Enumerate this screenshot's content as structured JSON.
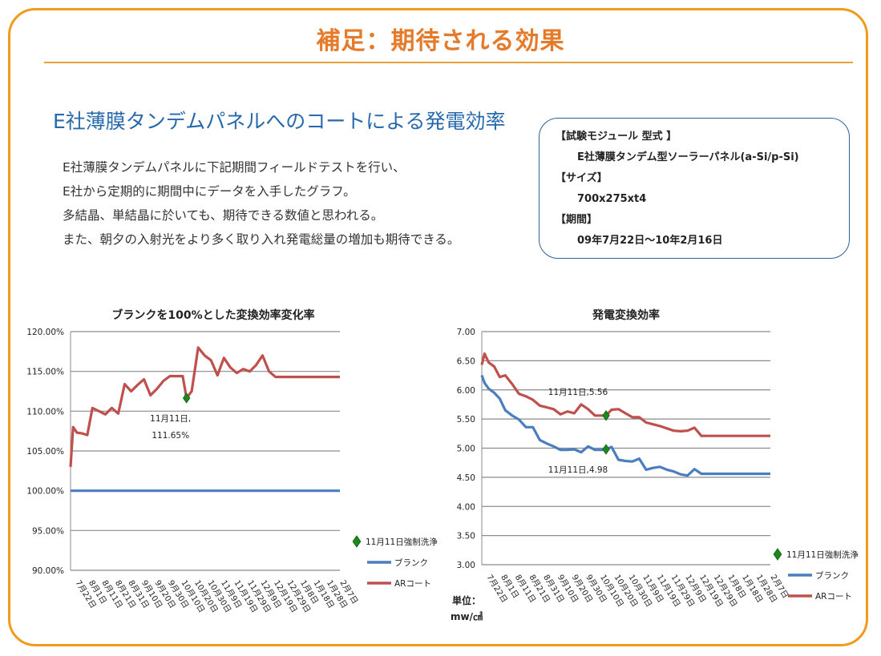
{
  "header": {
    "title": "補足：期待される効果",
    "subtitle": "E社薄膜タンデムパネルへのコートによる発電効率"
  },
  "description": [
    "E社薄膜タンデムパネルに下記期間フィールドテストを行い、",
    "E社から定期的に期間中にデータを入手したグラフ。",
    "多結晶、単結晶に於いても、期待できる数値と思われる。",
    "また、朝夕の入射光をより多く取り入れ発電総量の増加も期待できる。"
  ],
  "info_box": {
    "module_label": "【試験モジュール 型式 】",
    "module_value": "E社薄膜タンデム型ソーラーパネル(a-Si/p-Si)",
    "size_label": "【サイズ】",
    "size_value": "700x275xt4",
    "period_label": "【期間】",
    "period_value": "09年7月22日～10年2月16日"
  },
  "colors": {
    "blank": "#4a7ebf",
    "ar": "#c0504d",
    "marker": "#1a8a1a",
    "grid": "#8c8c8c"
  },
  "chart_data": [
    {
      "type": "line",
      "title": "ブランクを100%とした変換効率変化率",
      "ylim": [
        90,
        120
      ],
      "y_ticks": [
        "90.00%",
        "95.00%",
        "100.00%",
        "105.00%",
        "110.00%",
        "115.00%",
        "120.00%"
      ],
      "x_labels": [
        "7月22日",
        "8月1日",
        "8月11日",
        "8月21日",
        "8月31日",
        "9月10日",
        "9月20日",
        "9月30日",
        "10月10日",
        "10月20日",
        "10月30日",
        "11月9日",
        "11月19日",
        "11月29日",
        "12月9日",
        "12月19日",
        "12月29日",
        "1月8日",
        "1月18日",
        "1月28日",
        "2月7日"
      ],
      "x_range": [
        0,
        209
      ],
      "series": [
        {
          "name": "ブランク",
          "x": [
            0,
            209
          ],
          "values": [
            100,
            100
          ]
        },
        {
          "name": "ARコート",
          "x": [
            0,
            2,
            5,
            9,
            13,
            17,
            22,
            27,
            32,
            37,
            42,
            47,
            52,
            57,
            62,
            67,
            72,
            77,
            82,
            87,
            90,
            94,
            99,
            104,
            109,
            114,
            119,
            124,
            129,
            134,
            139,
            144,
            149,
            154,
            159,
            164,
            169,
            174,
            179,
            184,
            189,
            194,
            199,
            204,
            209
          ],
          "values": [
            103.0,
            108.0,
            107.3,
            107.2,
            107.0,
            110.4,
            110.0,
            109.6,
            110.4,
            109.7,
            113.4,
            112.5,
            113.3,
            114.0,
            112.0,
            112.8,
            113.8,
            114.4,
            114.4,
            114.4,
            111.65,
            112.5,
            118.0,
            117.0,
            116.4,
            114.5,
            116.7,
            115.5,
            114.8,
            115.3,
            115.0,
            115.8,
            117.0,
            115.0,
            114.3,
            114.3,
            114.3,
            114.3,
            114.3,
            114.3,
            114.3,
            114.3,
            114.3,
            114.3,
            114.3
          ]
        }
      ],
      "annotation": {
        "x": 90,
        "y": 111.65,
        "lines": [
          "11月11日,",
          "111.65%"
        ]
      },
      "legend": [
        {
          "type": "marker",
          "label": "11月11日強制洗浄"
        },
        {
          "type": "line",
          "series": "ブランク",
          "label": "ブランク"
        },
        {
          "type": "line",
          "series": "ARコート",
          "label": "ARコート"
        }
      ]
    },
    {
      "type": "line",
      "title": "発電変換効率",
      "ylim": [
        3,
        7
      ],
      "y_ticks": [
        "3.00",
        "3.50",
        "4.00",
        "4.50",
        "5.00",
        "5.50",
        "6.00",
        "6.50",
        "7.00"
      ],
      "x_labels": [
        "7月22日",
        "8月1日",
        "8月11日",
        "8月21日",
        "8月31日",
        "9月10日",
        "9月20日",
        "9月30日",
        "10月10日",
        "10月20日",
        "10月30日",
        "11月9日",
        "11月19日",
        "11月29日",
        "12月9日",
        "12月19日",
        "12月29日",
        "1月8日",
        "1月18日",
        "1月28日",
        "2月7日"
      ],
      "x_range": [
        0,
        209
      ],
      "series": [
        {
          "name": "ブランク",
          "x": [
            0,
            2,
            5,
            9,
            13,
            17,
            22,
            27,
            32,
            37,
            42,
            47,
            52,
            57,
            62,
            67,
            72,
            77,
            82,
            87,
            90,
            94,
            99,
            104,
            109,
            114,
            119,
            124,
            129,
            134,
            139,
            144,
            149,
            154,
            159,
            164,
            169,
            174,
            179,
            184,
            189,
            194,
            199,
            204,
            209
          ],
          "values": [
            6.25,
            6.12,
            6.02,
            5.95,
            5.85,
            5.65,
            5.56,
            5.49,
            5.36,
            5.36,
            5.14,
            5.08,
            5.03,
            4.97,
            4.97,
            4.98,
            4.93,
            5.03,
            4.97,
            4.97,
            4.98,
            5.02,
            4.8,
            4.78,
            4.77,
            4.82,
            4.63,
            4.66,
            4.68,
            4.63,
            4.6,
            4.55,
            4.53,
            4.64,
            4.56,
            4.56,
            4.56,
            4.56,
            4.56,
            4.56,
            4.56,
            4.56,
            4.56,
            4.56,
            4.56
          ]
        },
        {
          "name": "ARコート",
          "x": [
            0,
            2,
            5,
            9,
            13,
            17,
            22,
            27,
            32,
            37,
            42,
            47,
            52,
            57,
            62,
            67,
            72,
            77,
            82,
            87,
            90,
            94,
            99,
            104,
            109,
            114,
            119,
            124,
            129,
            134,
            139,
            144,
            149,
            154,
            159,
            164,
            169,
            174,
            179,
            184,
            189,
            194,
            199,
            204,
            209
          ],
          "values": [
            6.43,
            6.62,
            6.47,
            6.4,
            6.22,
            6.25,
            6.1,
            5.93,
            5.89,
            5.83,
            5.73,
            5.7,
            5.67,
            5.58,
            5.63,
            5.6,
            5.75,
            5.67,
            5.56,
            5.56,
            5.56,
            5.66,
            5.67,
            5.6,
            5.53,
            5.53,
            5.44,
            5.41,
            5.38,
            5.34,
            5.3,
            5.29,
            5.3,
            5.35,
            5.21,
            5.21,
            5.21,
            5.21,
            5.21,
            5.21,
            5.21,
            5.21,
            5.21,
            5.21,
            5.21
          ]
        }
      ],
      "annotations": [
        {
          "x": 90,
          "y": 5.56,
          "label": "11月11日,5.56",
          "pos": "above"
        },
        {
          "x": 90,
          "y": 4.98,
          "label": "11月11日,4.98",
          "pos": "below"
        }
      ],
      "unit_label": [
        "単位：",
        "mw/㎠"
      ],
      "legend": [
        {
          "type": "marker",
          "label": "11月11日強制洗浄"
        },
        {
          "type": "line",
          "series": "ブランク",
          "label": "ブランク"
        },
        {
          "type": "line",
          "series": "ARコート",
          "label": "ARコート"
        }
      ]
    }
  ]
}
